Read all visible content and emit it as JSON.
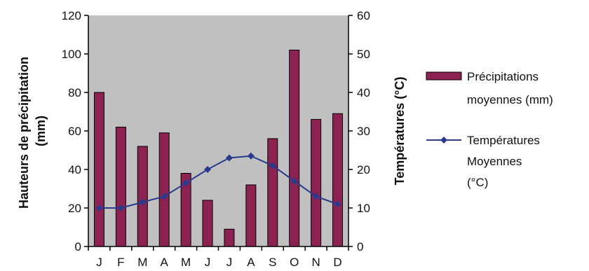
{
  "chart_data": {
    "type": "bar+line",
    "categories": [
      "J",
      "F",
      "M",
      "A",
      "M",
      "J",
      "J",
      "A",
      "S",
      "O",
      "N",
      "D"
    ],
    "series": [
      {
        "name": "Précipitations moyennes (mm)",
        "name_lines": [
          "Précipitations",
          "moyennes (mm)"
        ],
        "type": "bar",
        "axis": "left",
        "color": "#8b2252",
        "values": [
          80,
          62,
          52,
          59,
          38,
          24,
          9,
          32,
          56,
          102,
          66,
          69
        ]
      },
      {
        "name": "Températures Moyennes (°C)",
        "name_lines": [
          "Températures",
          "Moyennes",
          "(°C)"
        ],
        "type": "line",
        "axis": "right",
        "color": "#2b3a8c",
        "values": [
          10,
          10,
          11.5,
          13,
          16.5,
          20,
          23,
          23.5,
          21,
          17,
          13,
          11
        ]
      }
    ],
    "ylabel_left": "Hauteurs de précipitation (mm)",
    "ylabel_left_lines": [
      "Hauteurs de précipitation",
      "(mm)"
    ],
    "ylabel_right": "Températures (°C)",
    "ylim_left": [
      0,
      120
    ],
    "ylim_right": [
      0,
      60
    ],
    "yticks_left": [
      "0",
      "20",
      "40",
      "60",
      "80",
      "100",
      "120"
    ],
    "yticks_right": [
      "0",
      "10",
      "20",
      "30",
      "40",
      "50",
      "60"
    ],
    "plot_background": "#c0c0c0",
    "grid": false,
    "legend_position": "right"
  }
}
